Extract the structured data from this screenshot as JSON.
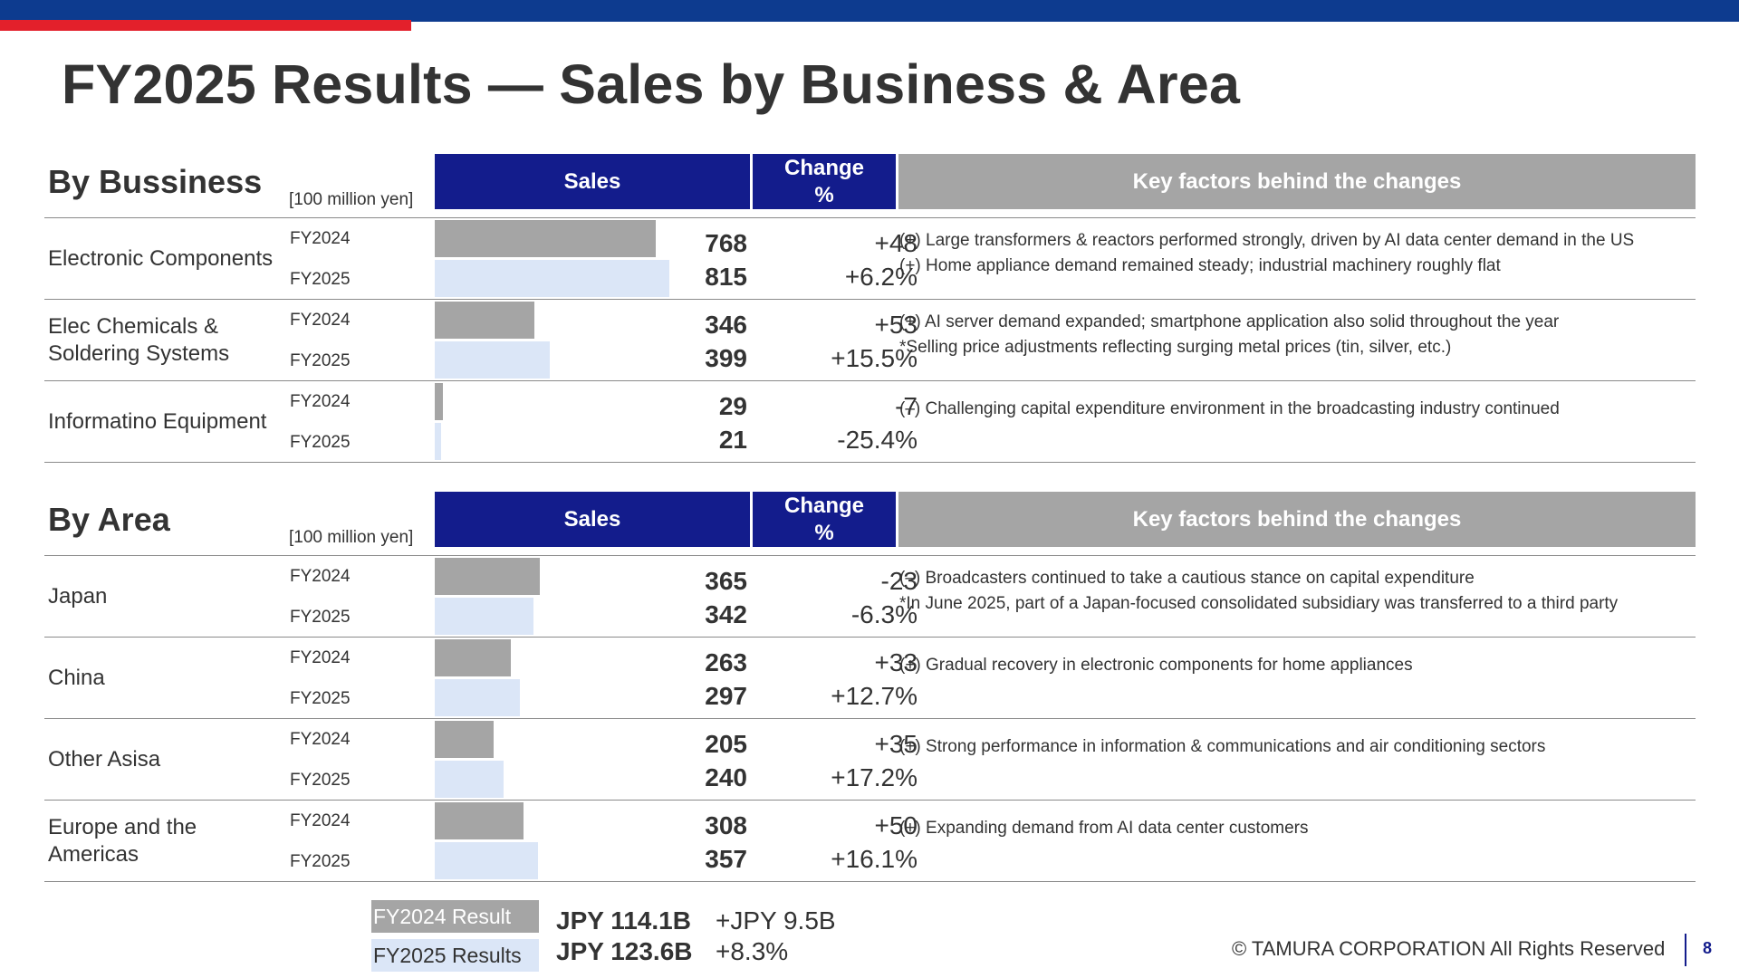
{
  "title": "FY2025 Results — Sales by Business & Area",
  "headers": {
    "sales": "Sales",
    "change_line1": "Change",
    "change_line2": "%",
    "factors": "Key factors behind the changes"
  },
  "unit": "[100 million yen]",
  "year_a": "FY2024",
  "year_b": "FY2025",
  "colors": {
    "fy2024": "#a5a5a5",
    "fy2025": "#dbe6f7",
    "header_blue": "#131c8c",
    "header_gray": "#a5a5a5",
    "brand_red": "#e3202b",
    "brand_navy": "#0d3b8f"
  },
  "business": {
    "title": "By Bussiness",
    "rows": [
      {
        "label": "Electronic Components",
        "fy2024": 768,
        "fy2025": 815,
        "change_abs": "+48",
        "change_pct": "+6.2%",
        "factor1": "(+) Large transformers & reactors performed strongly, driven by AI data center demand in the US",
        "factor2": "(+) Home appliance demand remained steady; industrial machinery roughly flat"
      },
      {
        "label": "Elec Chemicals & Soldering Systems",
        "fy2024": 346,
        "fy2025": 399,
        "change_abs": "+53",
        "change_pct": "+15.5%",
        "factor1": "(+) AI server demand expanded; smartphone application also solid throughout the year",
        "factor2": "*Selling price adjustments reflecting surging metal prices (tin, silver, etc.)"
      },
      {
        "label": "Informatino Equipment",
        "fy2024": 29,
        "fy2025": 21,
        "change_abs": "-7",
        "change_pct": "-25.4%",
        "factor1": "(–) Challenging capital expenditure environment in the broadcasting industry continued",
        "factor2": ""
      }
    ]
  },
  "area": {
    "title": "By Area",
    "rows": [
      {
        "label": "Japan",
        "fy2024": 365,
        "fy2025": 342,
        "change_abs": "-23",
        "change_pct": "-6.3%",
        "factor1": "(–) Broadcasters continued to take a cautious stance on capital expenditure",
        "factor2": "*In June 2025, part of a Japan-focused consolidated subsidiary was transferred to a third party"
      },
      {
        "label": "China",
        "fy2024": 263,
        "fy2025": 297,
        "change_abs": "+33",
        "change_pct": "+12.7%",
        "factor1": "(+) Gradual recovery in electronic components for home appliances",
        "factor2": ""
      },
      {
        "label": "Other Asisa",
        "fy2024": 205,
        "fy2025": 240,
        "change_abs": "+35",
        "change_pct": "+17.2%",
        "factor1": "(+) Strong performance in information & communications and air conditioning sectors",
        "factor2": ""
      },
      {
        "label": "Europe and the Americas",
        "fy2024": 308,
        "fy2025": 357,
        "change_abs": "+50",
        "change_pct": "+16.1%",
        "factor1": "(+) Expanding demand from AI data center customers",
        "factor2": ""
      }
    ]
  },
  "totals": {
    "fy2024_label": "FY2024 Result",
    "fy2025_label": "FY2025 Results",
    "fy2024_value": "JPY 114.1B",
    "fy2025_value": "JPY 123.6B",
    "change_abs": "+JPY 9.5B",
    "change_pct": "+8.3%"
  },
  "footer": {
    "copyright": "© TAMURA CORPORATION All Rights Reserved",
    "page_number": "8"
  }
}
